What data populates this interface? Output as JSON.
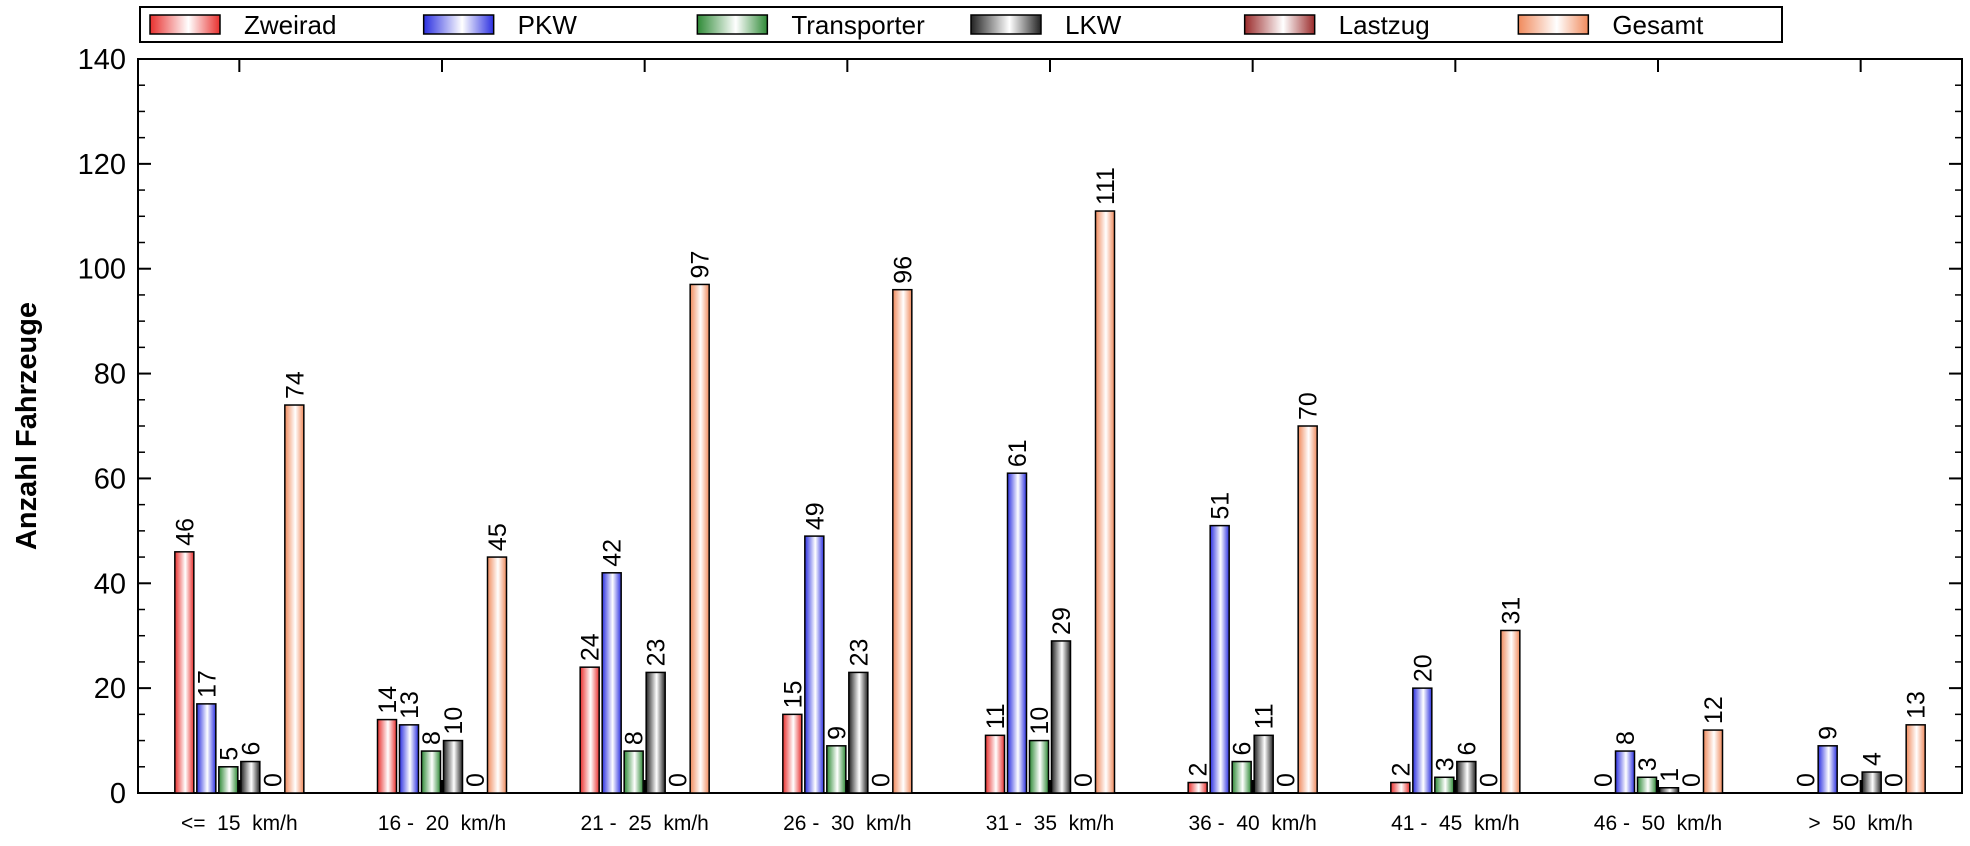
{
  "chart_data": {
    "type": "bar",
    "ylabel": "Anzahl Fahrzeuge",
    "xlabel": "",
    "ylim": [
      0,
      140
    ],
    "yticks": [
      "0",
      "20",
      "40",
      "60",
      "80",
      "100",
      "120",
      "140"
    ],
    "legend_position": "top",
    "categories": [
      "<=  15  km/h",
      "16 -  20  km/h",
      "21 -  25  km/h",
      "26 -  30  km/h",
      "31 -  35  km/h",
      "36 -  40  km/h",
      "41 -  45  km/h",
      "46 -  50  km/h",
      ">  50  km/h"
    ],
    "series": [
      {
        "name": "Zweirad",
        "color": "#e8302e",
        "values": [
          46,
          14,
          24,
          15,
          11,
          2,
          2,
          0,
          0
        ]
      },
      {
        "name": "PKW",
        "color": "#2b2fe0",
        "values": [
          17,
          13,
          42,
          49,
          61,
          51,
          20,
          8,
          9
        ]
      },
      {
        "name": "Transporter",
        "color": "#2e8a36",
        "values": [
          5,
          8,
          8,
          9,
          10,
          6,
          3,
          3,
          0
        ]
      },
      {
        "name": "LKW",
        "color": "#222222",
        "values": [
          6,
          10,
          23,
          23,
          29,
          11,
          6,
          1,
          4
        ]
      },
      {
        "name": "Lastzug",
        "color": "#9a2a2a",
        "values": [
          0,
          0,
          0,
          0,
          0,
          0,
          0,
          0,
          0
        ]
      },
      {
        "name": "Gesamt",
        "color": "#f08a5c",
        "values": [
          74,
          45,
          97,
          96,
          111,
          70,
          31,
          12,
          13
        ]
      }
    ]
  }
}
